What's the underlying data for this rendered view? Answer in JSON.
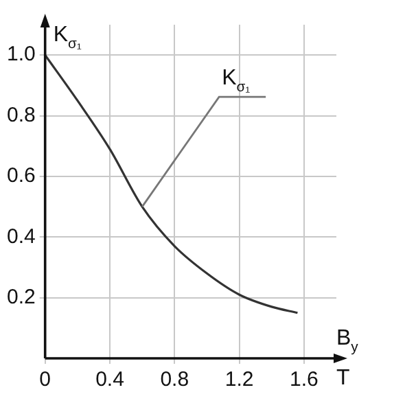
{
  "chart_data": {
    "type": "line",
    "ylabel": "K$_{σ₁}$",
    "xlabel": "B$_{y}$",
    "x": [
      0,
      0.2,
      0.4,
      0.6,
      0.8,
      1.0,
      1.2,
      1.4,
      1.56
    ],
    "series": [
      {
        "color": "#333333",
        "values": [
          1.0,
          0.85,
          0.69,
          0.5,
          0.37,
          0.28,
          0.21,
          0.17,
          0.15
        ]
      }
    ],
    "annotations": [
      {
        "text": "K$_{σ₁}$",
        "x": 0.6,
        "y": 0.5
      },
      "T"
    ],
    "xlim": [
      0,
      1.8
    ],
    "ylim": [
      0,
      1.1
    ],
    "xticks": [
      0,
      0.4,
      0.8,
      1.2,
      1.6
    ],
    "yticks": [
      0.2,
      0.4,
      0.6,
      0.8,
      {
        "value": 1,
        "label": "1.0"
      }
    ],
    "grid": true,
    "legend": false,
    "marker": "none",
    "line_style": "solid"
  }
}
